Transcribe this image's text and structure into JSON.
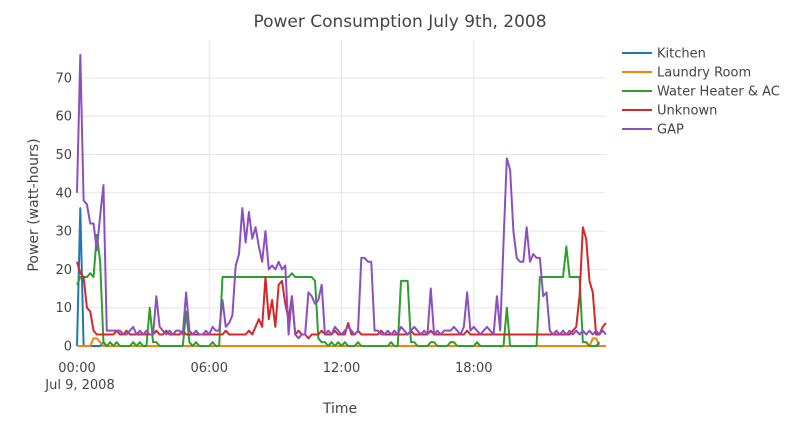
{
  "chart_data": {
    "type": "line",
    "title": "Power Consumption July 9th, 2008",
    "xlabel": "Time",
    "ylabel": "Power (watt-hours)",
    "x_tick_labels": [
      "00:00",
      "06:00",
      "12:00",
      "18:00"
    ],
    "x_tick_hours": [
      0,
      6,
      12,
      18
    ],
    "x_date_label": "Jul 9, 2008",
    "y_ticks": [
      0,
      10,
      20,
      30,
      40,
      50,
      60,
      70
    ],
    "xlim_hours": [
      0,
      24
    ],
    "ylim": [
      0,
      80
    ],
    "grid": true,
    "legend_position": "top-right",
    "x_hours": [
      0,
      0.15,
      0.3,
      0.45,
      0.6,
      0.75,
      0.9,
      1.05,
      1.2,
      1.35,
      1.5,
      1.65,
      1.8,
      1.95,
      2.1,
      2.25,
      2.4,
      2.55,
      2.7,
      2.85,
      3,
      3.15,
      3.3,
      3.45,
      3.6,
      3.75,
      3.9,
      4.05,
      4.2,
      4.35,
      4.5,
      4.65,
      4.8,
      4.95,
      5.1,
      5.25,
      5.4,
      5.55,
      5.7,
      5.85,
      6,
      6.15,
      6.3,
      6.45,
      6.6,
      6.75,
      6.9,
      7.05,
      7.2,
      7.35,
      7.5,
      7.65,
      7.8,
      7.95,
      8.1,
      8.25,
      8.4,
      8.55,
      8.7,
      8.85,
      9,
      9.15,
      9.3,
      9.45,
      9.6,
      9.75,
      9.9,
      10.05,
      10.2,
      10.35,
      10.5,
      10.65,
      10.8,
      10.95,
      11.1,
      11.25,
      11.4,
      11.55,
      11.7,
      11.85,
      12,
      12.15,
      12.3,
      12.45,
      12.6,
      12.75,
      12.9,
      13.05,
      13.2,
      13.35,
      13.5,
      13.65,
      13.8,
      13.95,
      14.1,
      14.25,
      14.4,
      14.55,
      14.7,
      14.85,
      15,
      15.15,
      15.3,
      15.45,
      15.6,
      15.75,
      15.9,
      16.05,
      16.2,
      16.35,
      16.5,
      16.65,
      16.8,
      16.95,
      17.1,
      17.25,
      17.4,
      17.55,
      17.7,
      17.85,
      18,
      18.15,
      18.3,
      18.45,
      18.6,
      18.75,
      18.9,
      19.05,
      19.2,
      19.35,
      19.5,
      19.65,
      19.8,
      19.95,
      20.1,
      20.25,
      20.4,
      20.55,
      20.7,
      20.85,
      21,
      21.15,
      21.3,
      21.45,
      21.6,
      21.75,
      21.9,
      22.05,
      22.2,
      22.35,
      22.5,
      22.65,
      22.8,
      22.95,
      23.1,
      23.25,
      23.4,
      23.55,
      23.7,
      23.85,
      24
    ],
    "series": [
      {
        "name": "Kitchen",
        "color": "#1f77b4",
        "values": [
          0,
          36,
          0,
          0,
          0,
          0,
          0,
          0,
          1,
          0,
          0,
          0,
          0,
          0,
          0,
          0,
          0,
          0,
          0,
          0,
          0,
          0,
          0,
          0,
          0,
          0,
          0,
          0,
          0,
          0,
          0,
          0,
          0,
          0,
          0,
          0,
          0,
          0,
          0,
          0,
          0,
          0,
          0,
          0,
          0,
          0,
          0,
          0,
          0,
          0,
          0,
          0,
          0,
          0,
          0,
          0,
          0,
          0,
          0,
          0,
          0,
          0,
          0,
          0,
          0,
          0,
          0,
          0,
          0,
          0,
          0,
          0,
          0,
          0,
          0,
          0,
          0,
          0,
          0,
          0,
          0,
          0,
          0,
          0,
          0,
          0,
          0,
          0,
          0,
          0,
          0,
          0,
          0,
          0,
          0,
          0,
          0,
          0,
          0,
          0,
          0,
          0,
          0,
          0,
          0,
          0,
          0,
          0,
          0,
          0,
          0,
          0,
          0,
          0,
          0,
          0,
          0,
          0,
          0,
          0,
          0,
          0,
          0,
          0,
          0,
          0,
          0,
          0,
          0,
          0,
          0,
          0,
          0,
          0,
          0,
          0,
          0,
          0,
          0,
          0,
          0,
          0,
          0,
          0,
          0,
          0,
          0,
          0,
          0,
          0,
          0,
          0,
          0,
          0,
          0,
          0,
          0,
          0,
          0,
          0,
          0
        ]
      },
      {
        "name": "Laundry Room",
        "color": "#ff7f0e",
        "values": [
          0,
          0,
          0,
          0,
          0,
          2,
          2,
          1,
          0,
          0,
          0,
          0,
          0,
          0,
          0,
          0,
          0,
          0,
          0,
          0,
          0,
          0,
          0,
          0,
          0,
          0,
          0,
          0,
          0,
          0,
          0,
          0,
          0,
          0,
          0,
          0,
          0,
          0,
          0,
          0,
          0,
          0,
          0,
          0,
          0,
          0,
          0,
          0,
          0,
          0,
          0,
          0,
          0,
          0,
          0,
          0,
          0,
          0,
          0,
          0,
          0,
          0,
          0,
          0,
          0,
          0,
          0,
          0,
          0,
          0,
          0,
          0,
          0,
          0,
          0,
          0,
          0,
          0,
          0,
          0,
          0,
          0,
          0,
          0,
          0,
          0,
          0,
          0,
          0,
          0,
          0,
          0,
          0,
          0,
          0,
          0,
          0,
          0,
          0,
          0,
          0,
          0,
          0,
          0,
          0,
          0,
          0,
          0,
          0,
          0,
          0,
          0,
          0,
          0,
          0,
          0,
          0,
          0,
          0,
          0,
          0,
          0,
          0,
          0,
          0,
          0,
          0,
          0,
          0,
          0,
          0,
          0,
          0,
          0,
          0,
          0,
          0,
          0,
          0,
          0,
          0,
          0,
          0,
          0,
          0,
          0,
          0,
          0,
          0,
          0,
          0,
          0,
          0,
          0,
          0,
          0,
          2,
          2,
          0,
          0,
          0
        ]
      },
      {
        "name": "Water Heater & AC",
        "color": "#2ca02c",
        "values": [
          16,
          18,
          18,
          18,
          19,
          18,
          29,
          22,
          1,
          0,
          1,
          0,
          1,
          0,
          0,
          0,
          0,
          1,
          0,
          1,
          0,
          0,
          10,
          1,
          1,
          0,
          0,
          0,
          0,
          0,
          0,
          0,
          0,
          9,
          1,
          0,
          1,
          0,
          0,
          0,
          0,
          1,
          0,
          0,
          18,
          18,
          18,
          18,
          18,
          18,
          18,
          18,
          18,
          18,
          18,
          18,
          18,
          18,
          18,
          18,
          18,
          18,
          18,
          18,
          18,
          19,
          18,
          18,
          18,
          18,
          18,
          18,
          17,
          2,
          1,
          1,
          0,
          1,
          0,
          1,
          0,
          1,
          0,
          0,
          0,
          1,
          0,
          0,
          0,
          0,
          0,
          0,
          0,
          0,
          0,
          1,
          0,
          0,
          17,
          17,
          17,
          1,
          1,
          0,
          0,
          0,
          0,
          1,
          1,
          0,
          0,
          0,
          0,
          1,
          1,
          0,
          0,
          0,
          0,
          0,
          0,
          1,
          0,
          0,
          0,
          0,
          0,
          0,
          0,
          0,
          10,
          0,
          0,
          0,
          0,
          0,
          0,
          0,
          0,
          0,
          18,
          18,
          18,
          18,
          18,
          18,
          18,
          18,
          26,
          18,
          18,
          18,
          18,
          1,
          1,
          0,
          0,
          0,
          1
        ]
      },
      {
        "name": "Unknown",
        "color": "#d62728",
        "values": [
          22,
          19,
          18,
          10,
          9,
          4,
          3,
          3,
          3,
          3,
          3,
          3,
          4,
          3,
          3,
          4,
          3,
          3,
          3,
          3,
          3,
          3,
          3,
          3,
          4,
          3,
          3,
          4,
          3,
          3,
          3,
          3,
          4,
          3,
          3,
          3,
          3,
          3,
          3,
          3,
          3,
          3,
          3,
          3,
          3,
          4,
          3,
          3,
          3,
          3,
          3,
          3,
          4,
          3,
          5,
          7,
          5,
          18,
          7,
          12,
          5,
          16,
          17,
          11,
          7,
          13,
          3,
          4,
          3,
          3,
          2,
          3,
          3,
          3,
          4,
          3,
          3,
          3,
          4,
          3,
          3,
          3,
          6,
          3,
          3,
          4,
          3,
          3,
          3,
          3,
          3,
          3,
          4,
          3,
          3,
          3,
          3,
          3,
          3,
          3,
          3,
          4,
          3,
          3,
          3,
          3,
          3,
          4,
          3,
          3,
          3,
          3,
          3,
          3,
          3,
          3,
          3,
          3,
          4,
          3,
          3,
          3,
          3,
          3,
          3,
          3,
          3,
          3,
          3,
          3,
          3,
          3,
          3,
          3,
          3,
          3,
          3,
          3,
          3,
          3,
          3,
          3,
          3,
          3,
          3,
          3,
          3,
          3,
          3,
          3,
          4,
          5,
          13,
          31,
          28,
          17,
          14,
          3,
          3,
          5,
          6
        ]
      },
      {
        "name": "GAP",
        "color": "#8c4fc2",
        "values": [
          40,
          76,
          38,
          37,
          32,
          32,
          25,
          34,
          42,
          4,
          4,
          4,
          4,
          4,
          3,
          3,
          4,
          5,
          3,
          4,
          3,
          4,
          3,
          3,
          13,
          5,
          4,
          3,
          4,
          3,
          4,
          4,
          3,
          14,
          4,
          3,
          4,
          3,
          3,
          4,
          3,
          5,
          4,
          4,
          12,
          5,
          6,
          8,
          21,
          24,
          36,
          27,
          35,
          28,
          31,
          26,
          22,
          30,
          20,
          21,
          20,
          22,
          20,
          21,
          3,
          13,
          3,
          2,
          3,
          3,
          14,
          13,
          11,
          12,
          16,
          3,
          4,
          3,
          5,
          4,
          3,
          4,
          5,
          4,
          3,
          4,
          23,
          23,
          22,
          22,
          4,
          4,
          3,
          3,
          4,
          3,
          4,
          3,
          5,
          4,
          3,
          4,
          5,
          4,
          3,
          4,
          3,
          15,
          3,
          4,
          3,
          4,
          4,
          4,
          5,
          4,
          3,
          5,
          14,
          4,
          5,
          4,
          3,
          4,
          5,
          4,
          3,
          13,
          4,
          27,
          49,
          46,
          30,
          23,
          22,
          22,
          31,
          22,
          24,
          23,
          23,
          13,
          14,
          4,
          3,
          4,
          3,
          4,
          3,
          4,
          3,
          4,
          3,
          4,
          3,
          4,
          3,
          4,
          3,
          4,
          3
        ]
      }
    ]
  }
}
